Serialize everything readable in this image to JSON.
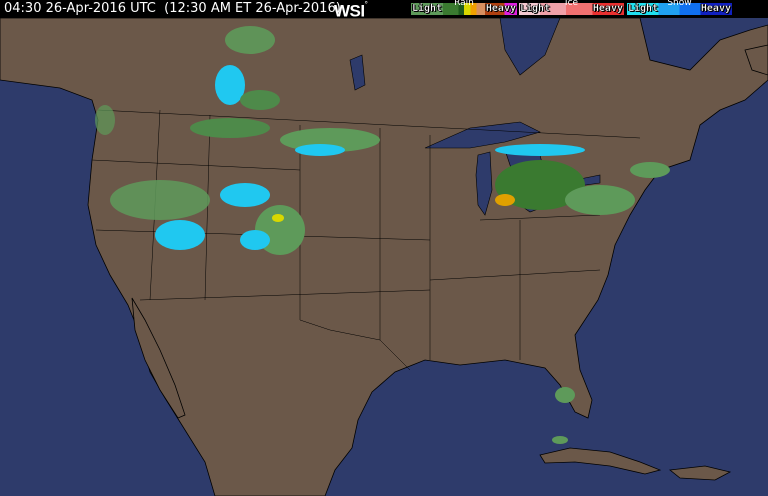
{
  "header": {
    "timestamp": "04:30 26-Apr-2016 UTC  (12:30 AM ET 26-Apr-2016)",
    "logo": "WSI",
    "logo_mark": "°"
  },
  "legend": {
    "rain": {
      "title": "Rain",
      "light": "Light",
      "heavy": "Heavy"
    },
    "ice": {
      "title": "Ice",
      "light": "Light",
      "heavy": "Heavy"
    },
    "snow": {
      "title": "Snow",
      "light": "Light",
      "heavy": "Heavy"
    }
  },
  "colors": {
    "ocean": "#2e3b6b",
    "land": "#6b5849",
    "rain_light": "#5e9a5a",
    "rain_moderate": "#3a7a30",
    "rain_heavy": "#d8d800",
    "snow_light": "#20d0f0",
    "snow_heavy": "#1020c0",
    "ice_light": "#f0a0a8"
  }
}
